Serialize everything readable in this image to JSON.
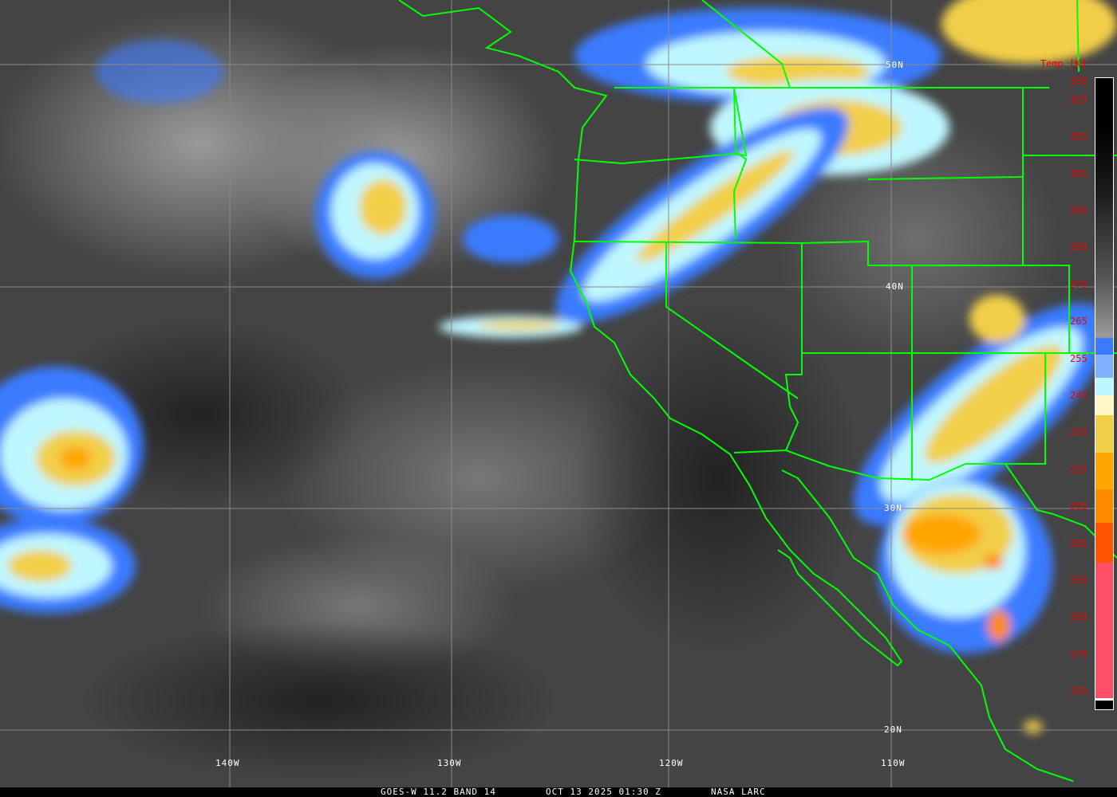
{
  "footer": {
    "satellite": "GOES-W 11.2 BAND 14",
    "datetime": "OCT 13 2025 01:30 Z",
    "credit": "NASA LARC"
  },
  "grid": {
    "lat_labels": [
      "50N",
      "40N",
      "30N",
      "20N"
    ],
    "lon_labels": [
      "140W",
      "130W",
      "120W",
      "110W"
    ]
  },
  "colorbar": {
    "title": "Temp [K]",
    "ticks": [
      "330",
      "325",
      "315",
      "305",
      "295",
      "285",
      "275",
      "265",
      "255",
      "245",
      "235",
      "225",
      "215",
      "205",
      "195",
      "185",
      "175",
      "165"
    ],
    "colors": {
      "blue": "#3b7bff",
      "light_blue": "#7fb1ff",
      "pale_cyan": "#bff7ff",
      "cream": "#fff8c6",
      "yellow": "#f2cf48",
      "orange": "#ffa600",
      "dark_orange": "#ff8a00",
      "red_orange": "#ff5500",
      "pink": "#ff4f66"
    }
  },
  "border_color": "#00ff00"
}
